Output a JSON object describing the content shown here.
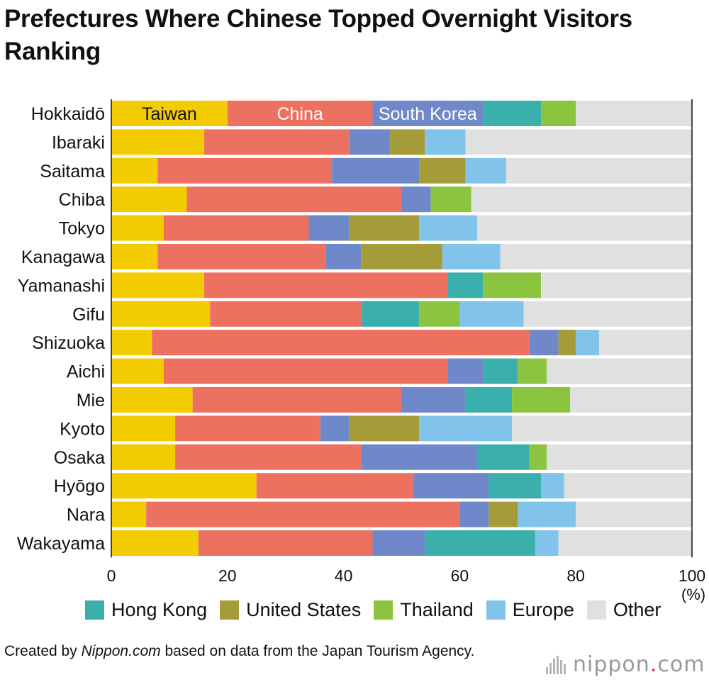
{
  "title": "Prefectures Where Chinese Topped Overnight Visitors Ranking",
  "chart_data": {
    "type": "bar",
    "orientation": "horizontal",
    "stacked": true,
    "unit_label": "(%)",
    "xlim": [
      0,
      100
    ],
    "xticks": [
      0,
      20,
      40,
      60,
      80,
      100
    ],
    "grid": false,
    "categories": [
      "Hokkaidō",
      "Ibaraki",
      "Saitama",
      "Chiba",
      "Tokyo",
      "Kanagawa",
      "Yamanashi",
      "Gifu",
      "Shizuoka",
      "Aichi",
      "Mie",
      "Kyoto",
      "Osaka",
      "Hyōgo",
      "Nara",
      "Wakayama"
    ],
    "series": [
      {
        "name": "Taiwan",
        "color": "#f2cb00",
        "values": [
          20,
          16,
          8,
          13,
          9,
          8,
          16,
          17,
          7,
          9,
          14,
          11,
          11,
          25,
          6,
          15
        ]
      },
      {
        "name": "China",
        "color": "#ec7161",
        "values": [
          25,
          25,
          30,
          37,
          25,
          29,
          42,
          26,
          65,
          49,
          36,
          25,
          32,
          27,
          54,
          30
        ]
      },
      {
        "name": "South Korea",
        "color": "#6f88c9",
        "values": [
          19,
          7,
          15,
          5,
          7,
          6,
          0,
          0,
          5,
          6,
          11,
          5,
          20,
          13,
          5,
          9
        ]
      },
      {
        "name": "Hong Kong",
        "color": "#3aafab",
        "values": [
          10,
          0,
          0,
          0,
          0,
          0,
          6,
          10,
          0,
          6,
          8,
          0,
          9,
          9,
          0,
          19
        ]
      },
      {
        "name": "United States",
        "color": "#a39c39",
        "values": [
          0,
          6,
          8,
          0,
          12,
          14,
          0,
          0,
          3,
          0,
          0,
          12,
          0,
          0,
          5,
          0
        ]
      },
      {
        "name": "Thailand",
        "color": "#8bc540",
        "values": [
          6,
          0,
          0,
          7,
          0,
          0,
          10,
          7,
          0,
          5,
          10,
          0,
          3,
          0,
          0,
          0
        ]
      },
      {
        "name": "Europe",
        "color": "#82c3eb",
        "values": [
          0,
          7,
          7,
          0,
          10,
          10,
          0,
          11,
          4,
          0,
          0,
          16,
          0,
          4,
          10,
          4
        ]
      },
      {
        "name": "Other",
        "color": "#e0e0e0",
        "values": [
          20,
          39,
          32,
          38,
          37,
          33,
          26,
          29,
          16,
          25,
          21,
          31,
          25,
          22,
          20,
          23
        ]
      }
    ],
    "in_bar_labels": [
      {
        "series": "Taiwan",
        "text": "Taiwan",
        "color": "#111111"
      },
      {
        "series": "China",
        "text": "China",
        "color": "#ffffff"
      },
      {
        "series": "South Korea",
        "text": "South Korea",
        "color": "#ffffff"
      }
    ],
    "legend": [
      "Hong Kong",
      "United States",
      "Thailand",
      "Europe",
      "Other"
    ],
    "legend_position": "bottom"
  },
  "credit": {
    "prefix": "Created by ",
    "site": "Nippon.com",
    "suffix": " based on data from the Japan Tourism Agency."
  },
  "logo": {
    "word": "nippon",
    "dot": ".",
    "tld": "com"
  }
}
